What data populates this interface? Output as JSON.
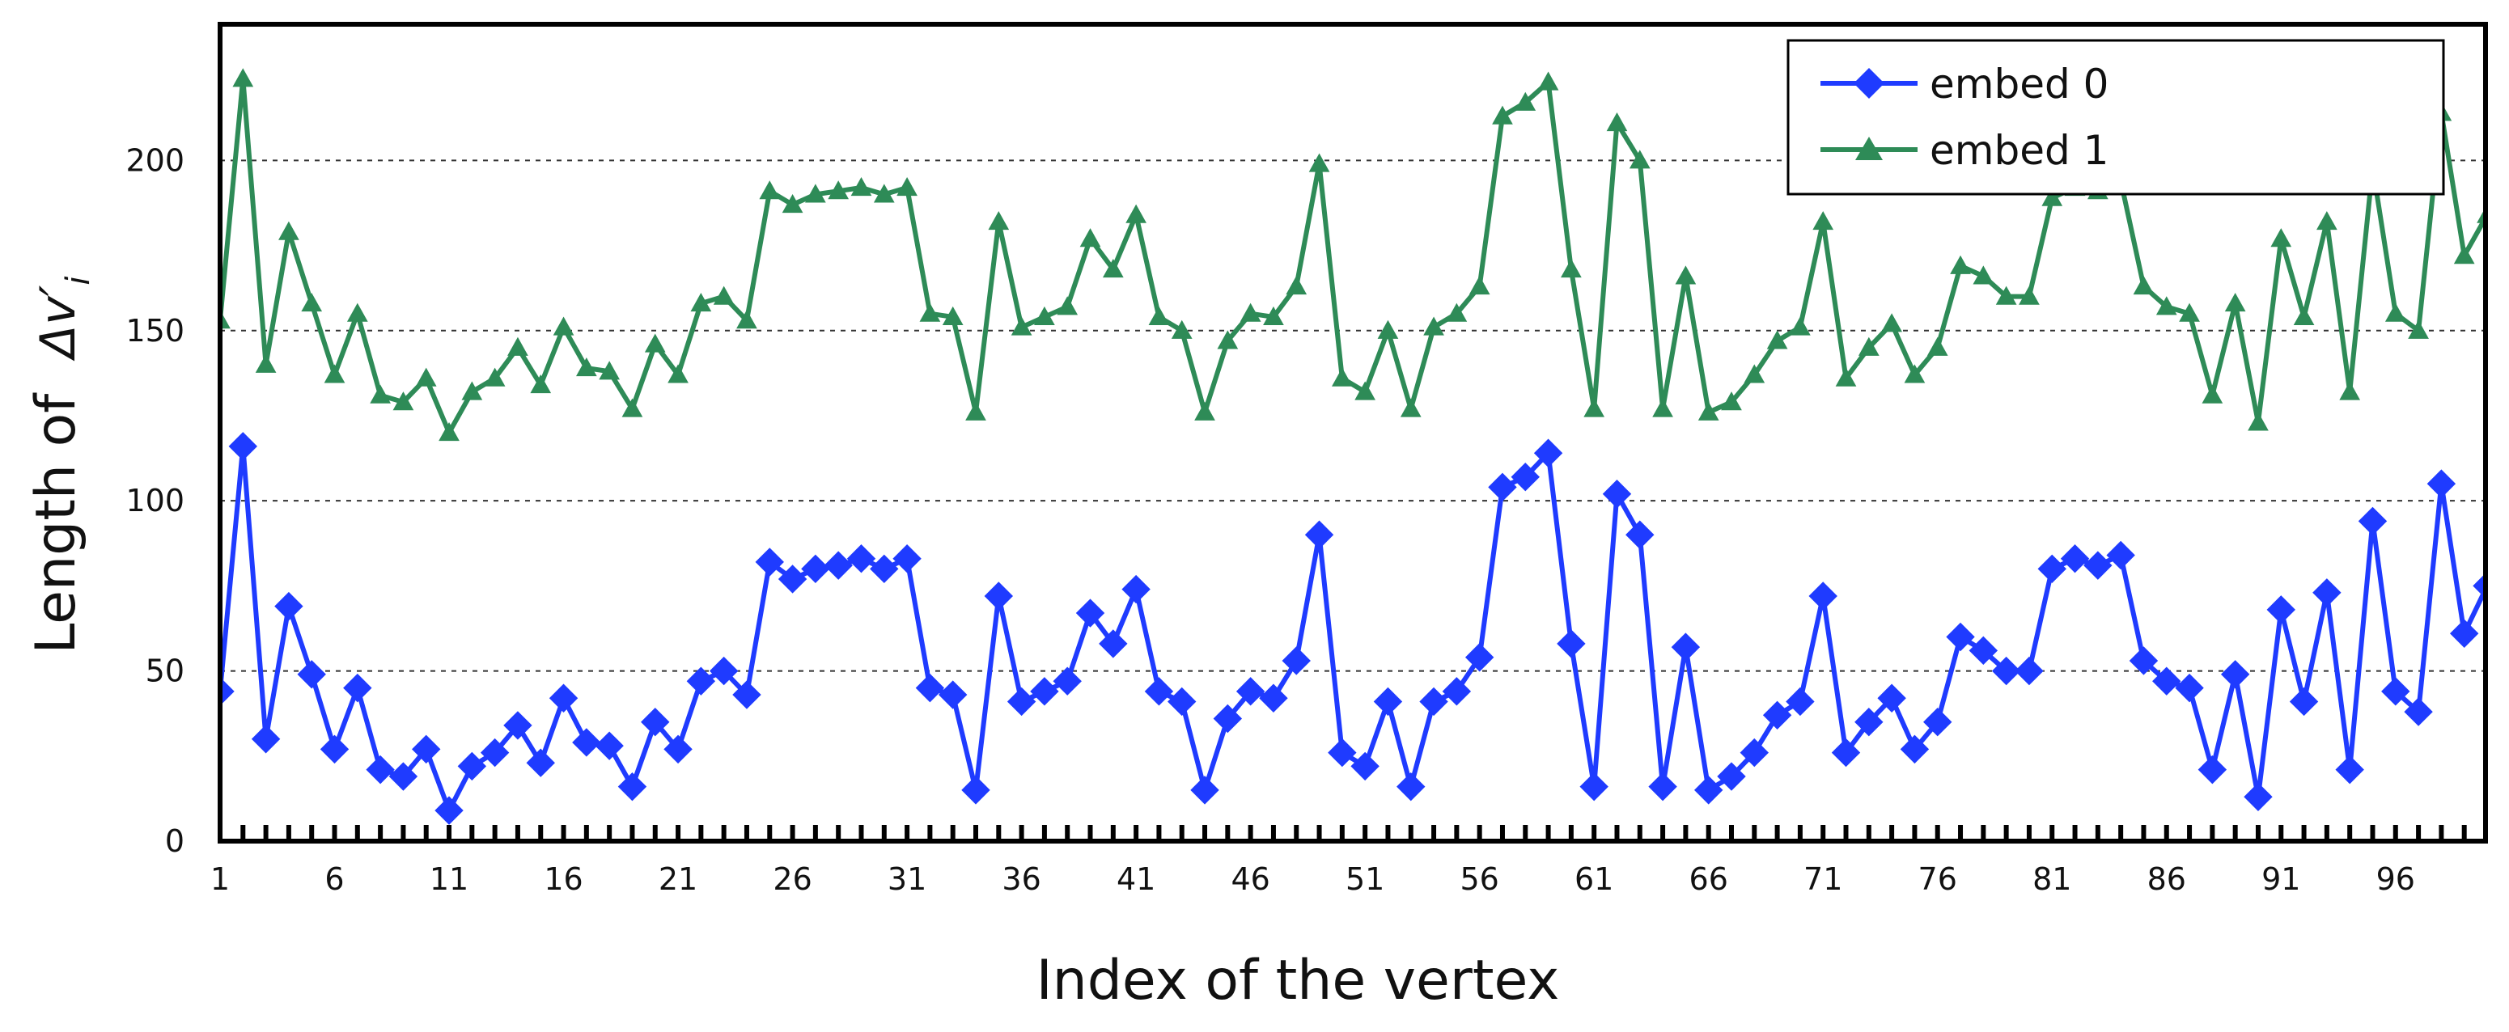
{
  "chart_data": {
    "type": "line",
    "title": "",
    "xlabel": "Index of the vertex",
    "ylabel": {
      "prefix": "Length  of",
      "symbol": "Δv′",
      "subscript": "i"
    },
    "ylim": [
      0,
      240
    ],
    "yticks": [
      0,
      50,
      100,
      150,
      200
    ],
    "xlim": [
      1,
      100
    ],
    "xtick_labels": [
      "1",
      "6",
      "11",
      "16",
      "21",
      "26",
      "31",
      "36",
      "41",
      "46",
      "51",
      "56",
      "61",
      "66",
      "71",
      "76",
      "81",
      "86",
      "91",
      "96"
    ],
    "grid": "horizontal-dotted",
    "legend_position": "top-right",
    "x": [
      1,
      2,
      3,
      4,
      5,
      6,
      7,
      8,
      9,
      10,
      11,
      12,
      13,
      14,
      15,
      16,
      17,
      18,
      19,
      20,
      21,
      22,
      23,
      24,
      25,
      26,
      27,
      28,
      29,
      30,
      31,
      32,
      33,
      34,
      35,
      36,
      37,
      38,
      39,
      40,
      41,
      42,
      43,
      44,
      45,
      46,
      47,
      48,
      49,
      50,
      51,
      52,
      53,
      54,
      55,
      56,
      57,
      58,
      59,
      60,
      61,
      62,
      63,
      64,
      65,
      66,
      67,
      68,
      69,
      70,
      71,
      72,
      73,
      74,
      75,
      76,
      77,
      78,
      79,
      80,
      81,
      82,
      83,
      84,
      85,
      86,
      87,
      88,
      89,
      90,
      91,
      92,
      93,
      94,
      95,
      96,
      97,
      98,
      99,
      100
    ],
    "series": [
      {
        "name": "embed 0",
        "color": "#1f3bff",
        "marker": "diamond",
        "values": [
          44,
          116,
          30,
          69,
          49,
          27,
          45,
          21,
          19,
          27,
          9,
          22,
          26,
          34,
          23,
          42,
          29,
          28,
          16,
          35,
          27,
          47,
          50,
          43,
          82,
          77,
          80,
          81,
          83,
          80,
          83,
          45,
          43,
          15,
          72,
          41,
          44,
          47,
          67,
          58,
          74,
          44,
          41,
          15,
          36,
          44,
          42,
          53,
          90,
          26,
          22,
          41,
          16,
          41,
          44,
          54,
          104,
          107,
          114,
          58,
          16,
          102,
          90,
          16,
          57,
          15,
          19,
          26,
          37,
          41,
          72,
          26,
          35,
          42,
          27,
          35,
          60,
          56,
          50,
          50,
          80,
          83,
          81,
          84,
          53,
          47,
          45,
          21,
          49,
          13,
          68,
          41,
          73,
          21,
          94,
          44,
          38,
          105,
          61,
          75
        ]
      },
      {
        "name": "embed 1",
        "color": "#2e8b57",
        "marker": "triangle",
        "values": [
          153,
          224,
          140,
          179,
          158,
          137,
          155,
          131,
          129,
          136,
          120,
          132,
          136,
          145,
          134,
          151,
          139,
          138,
          127,
          146,
          137,
          158,
          160,
          153,
          191,
          187,
          190,
          191,
          192,
          190,
          192,
          155,
          154,
          126,
          182,
          151,
          154,
          157,
          177,
          168,
          184,
          154,
          150,
          126,
          147,
          155,
          154,
          163,
          199,
          136,
          132,
          150,
          127,
          151,
          155,
          163,
          213,
          217,
          223,
          168,
          127,
          211,
          200,
          127,
          166,
          126,
          129,
          137,
          147,
          151,
          182,
          136,
          145,
          152,
          137,
          145,
          169,
          166,
          160,
          160,
          189,
          192,
          191,
          194,
          163,
          157,
          155,
          131,
          158,
          123,
          177,
          154,
          182,
          132,
          198,
          155,
          150,
          214,
          172,
          184
        ]
      }
    ]
  }
}
